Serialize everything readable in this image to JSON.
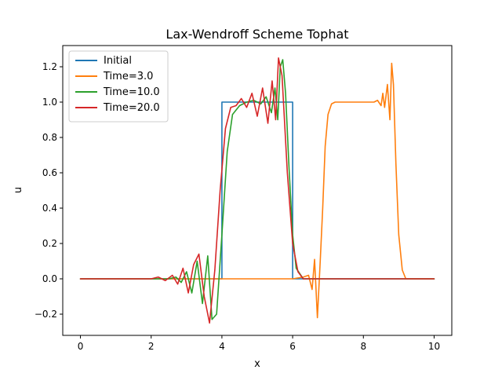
{
  "chart_data": {
    "type": "line",
    "title": "Lax-Wendroff Scheme Tophat",
    "xlabel": "x",
    "ylabel": "u",
    "xlim": [
      -0.5,
      10.5
    ],
    "ylim": [
      -0.32,
      1.32
    ],
    "xticks": [
      0,
      2,
      4,
      6,
      8,
      10
    ],
    "yticks": [
      -0.2,
      0.0,
      0.2,
      0.4,
      0.6,
      0.8,
      1.0,
      1.2
    ],
    "xtick_labels": [
      "0",
      "2",
      "4",
      "6",
      "8",
      "10"
    ],
    "ytick_labels": [
      "−0.2",
      "0.0",
      "0.2",
      "0.4",
      "0.6",
      "0.8",
      "1.0",
      "1.2"
    ],
    "grid": false,
    "legend": "top-left",
    "series": [
      {
        "name": "Initial",
        "color": "#1f77b4",
        "x": [
          0,
          4,
          4,
          6,
          6,
          10
        ],
        "y": [
          0,
          0,
          1,
          1,
          0,
          0
        ]
      },
      {
        "name": "Time=3.0",
        "color": "#ff7f0e",
        "x": [
          0,
          6.0,
          6.3,
          6.45,
          6.55,
          6.62,
          6.7,
          6.78,
          6.85,
          6.92,
          7.0,
          7.1,
          7.2,
          7.35,
          7.5,
          8.0,
          8.3,
          8.4,
          8.5,
          8.55,
          8.6,
          8.68,
          8.75,
          8.8,
          8.85,
          8.92,
          9.0,
          9.1,
          9.2,
          9.3,
          10.0
        ],
        "y": [
          0,
          0,
          0.01,
          0.02,
          -0.06,
          0.11,
          -0.22,
          0.1,
          0.4,
          0.75,
          0.93,
          0.99,
          1.0,
          1.0,
          1.0,
          1.0,
          1.0,
          1.01,
          0.98,
          1.05,
          0.97,
          1.1,
          0.9,
          1.22,
          1.1,
          0.65,
          0.25,
          0.05,
          0.0,
          0.0,
          0.0
        ]
      },
      {
        "name": "Time=10.0",
        "color": "#2ca02c",
        "x": [
          0,
          2.2,
          2.5,
          2.7,
          2.85,
          3.0,
          3.15,
          3.3,
          3.45,
          3.6,
          3.72,
          3.85,
          4.0,
          4.15,
          4.3,
          4.5,
          4.7,
          4.9,
          5.1,
          5.25,
          5.4,
          5.5,
          5.58,
          5.65,
          5.72,
          5.8,
          5.9,
          6.0,
          6.1,
          6.3,
          10.0
        ],
        "y": [
          0,
          0,
          0.0,
          0.01,
          -0.02,
          0.04,
          -0.08,
          0.1,
          -0.14,
          0.13,
          -0.23,
          -0.2,
          0.25,
          0.72,
          0.93,
          0.98,
          1.0,
          1.01,
          0.99,
          1.03,
          0.94,
          1.08,
          0.9,
          1.2,
          1.24,
          1.05,
          0.62,
          0.25,
          0.06,
          0.0,
          0.0
        ]
      },
      {
        "name": "Time=20.0",
        "color": "#d62728",
        "x": [
          0,
          1.7,
          2.0,
          2.2,
          2.4,
          2.6,
          2.75,
          2.9,
          3.05,
          3.2,
          3.35,
          3.5,
          3.65,
          3.8,
          3.95,
          4.1,
          4.25,
          4.4,
          4.55,
          4.7,
          4.85,
          5.0,
          5.15,
          5.3,
          5.42,
          5.52,
          5.6,
          5.7,
          5.85,
          6.0,
          6.15,
          6.3,
          10.0
        ],
        "y": [
          0,
          0,
          0.0,
          0.01,
          -0.01,
          0.02,
          -0.03,
          0.06,
          -0.08,
          0.08,
          0.14,
          -0.1,
          -0.25,
          0.05,
          0.5,
          0.85,
          0.97,
          0.98,
          1.02,
          0.97,
          1.05,
          0.92,
          1.08,
          0.88,
          1.12,
          0.9,
          1.25,
          1.15,
          0.6,
          0.2,
          0.04,
          0.0,
          0.0
        ]
      }
    ]
  }
}
